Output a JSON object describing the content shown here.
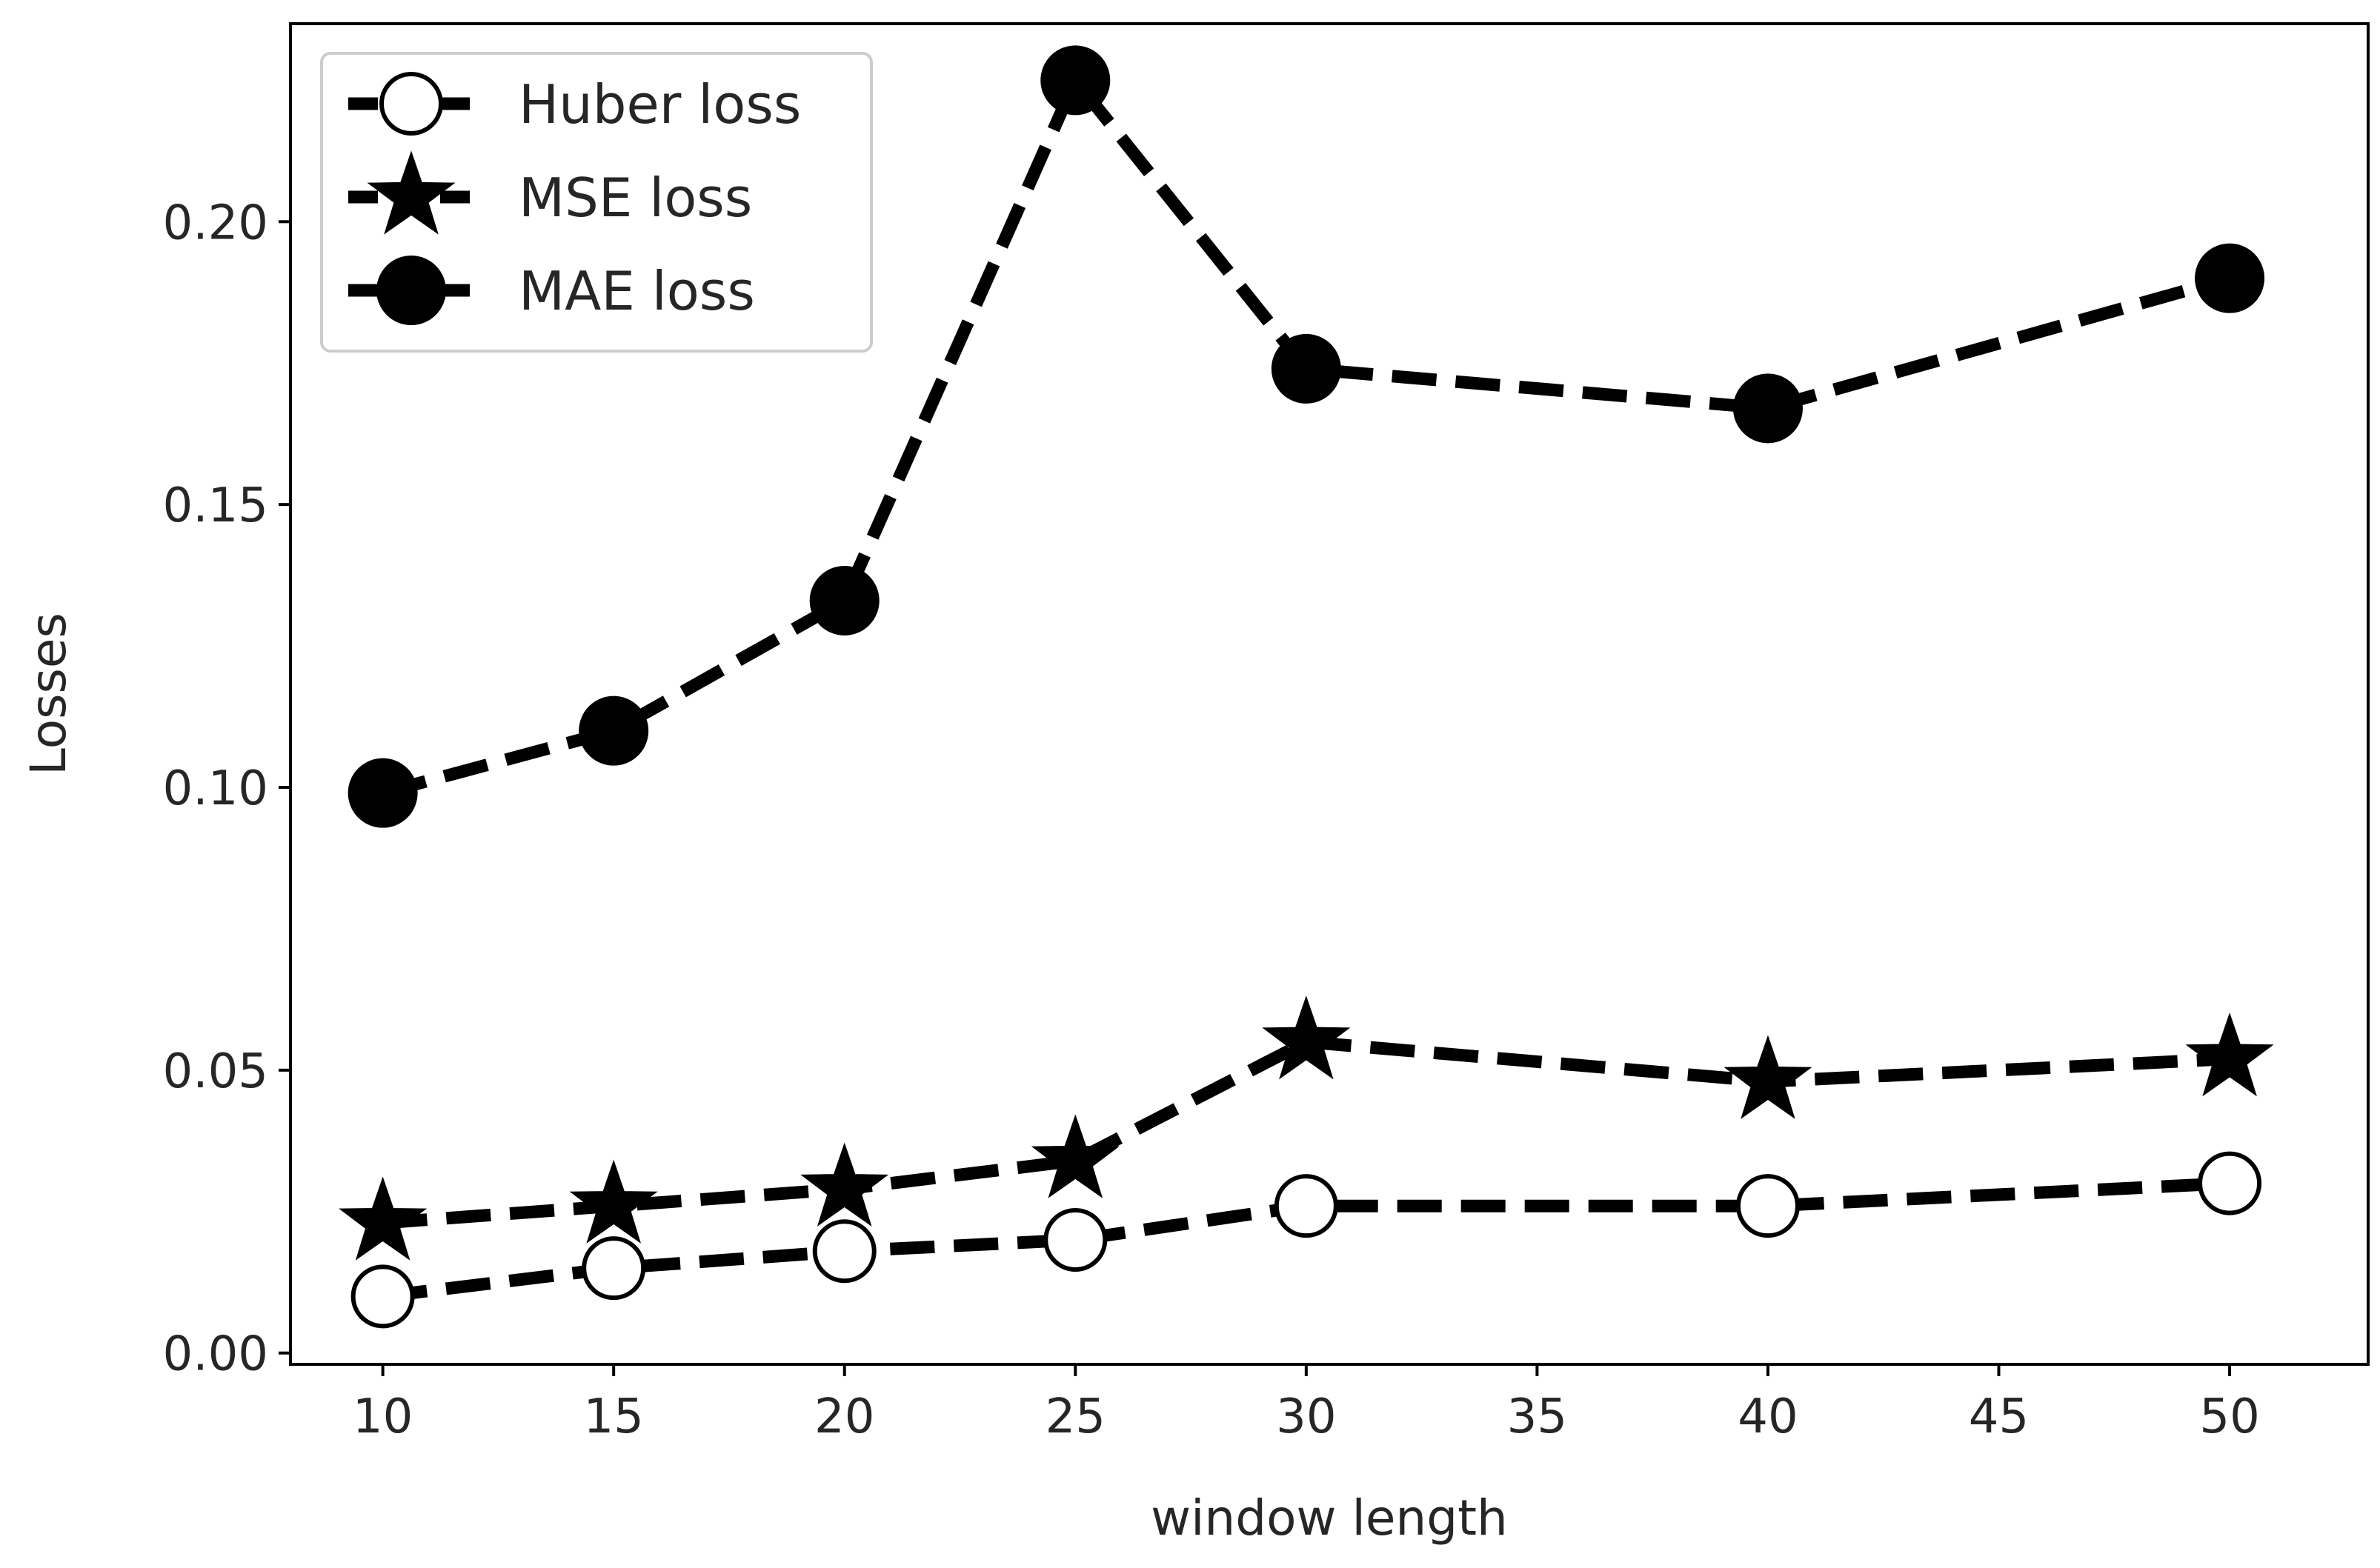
{
  "chart_data": {
    "type": "line",
    "title": "",
    "xlabel": "window length",
    "ylabel": "Losses",
    "xlim": [
      8,
      53
    ],
    "ylim": [
      -0.002,
      0.235
    ],
    "xticks": [
      10,
      15,
      20,
      25,
      30,
      35,
      40,
      45,
      50
    ],
    "xtick_labels": [
      "10",
      "15",
      "20",
      "25",
      "30",
      "35",
      "40",
      "45",
      "50"
    ],
    "yticks": [
      0.0,
      0.05,
      0.1,
      0.15,
      0.2
    ],
    "ytick_labels": [
      "0.00",
      "0.05",
      "0.10",
      "0.15",
      "0.20"
    ],
    "grid": false,
    "legend_position": "top-left",
    "x": [
      10,
      15,
      20,
      25,
      30,
      40,
      50
    ],
    "series": [
      {
        "name": "Huber loss",
        "marker": "circle-open",
        "linestyle": "dashed",
        "color": "#000000",
        "values": [
          0.01,
          0.015,
          0.018,
          0.02,
          0.026,
          0.026,
          0.03
        ]
      },
      {
        "name": "MSE loss",
        "marker": "star",
        "linestyle": "dashed",
        "color": "#000000",
        "values": [
          0.023,
          0.026,
          0.029,
          0.034,
          0.055,
          0.048,
          0.052
        ]
      },
      {
        "name": "MAE loss",
        "marker": "circle-filled",
        "linestyle": "dashed",
        "color": "#000000",
        "values": [
          0.099,
          0.11,
          0.133,
          0.225,
          0.174,
          0.167,
          0.19
        ]
      }
    ]
  }
}
